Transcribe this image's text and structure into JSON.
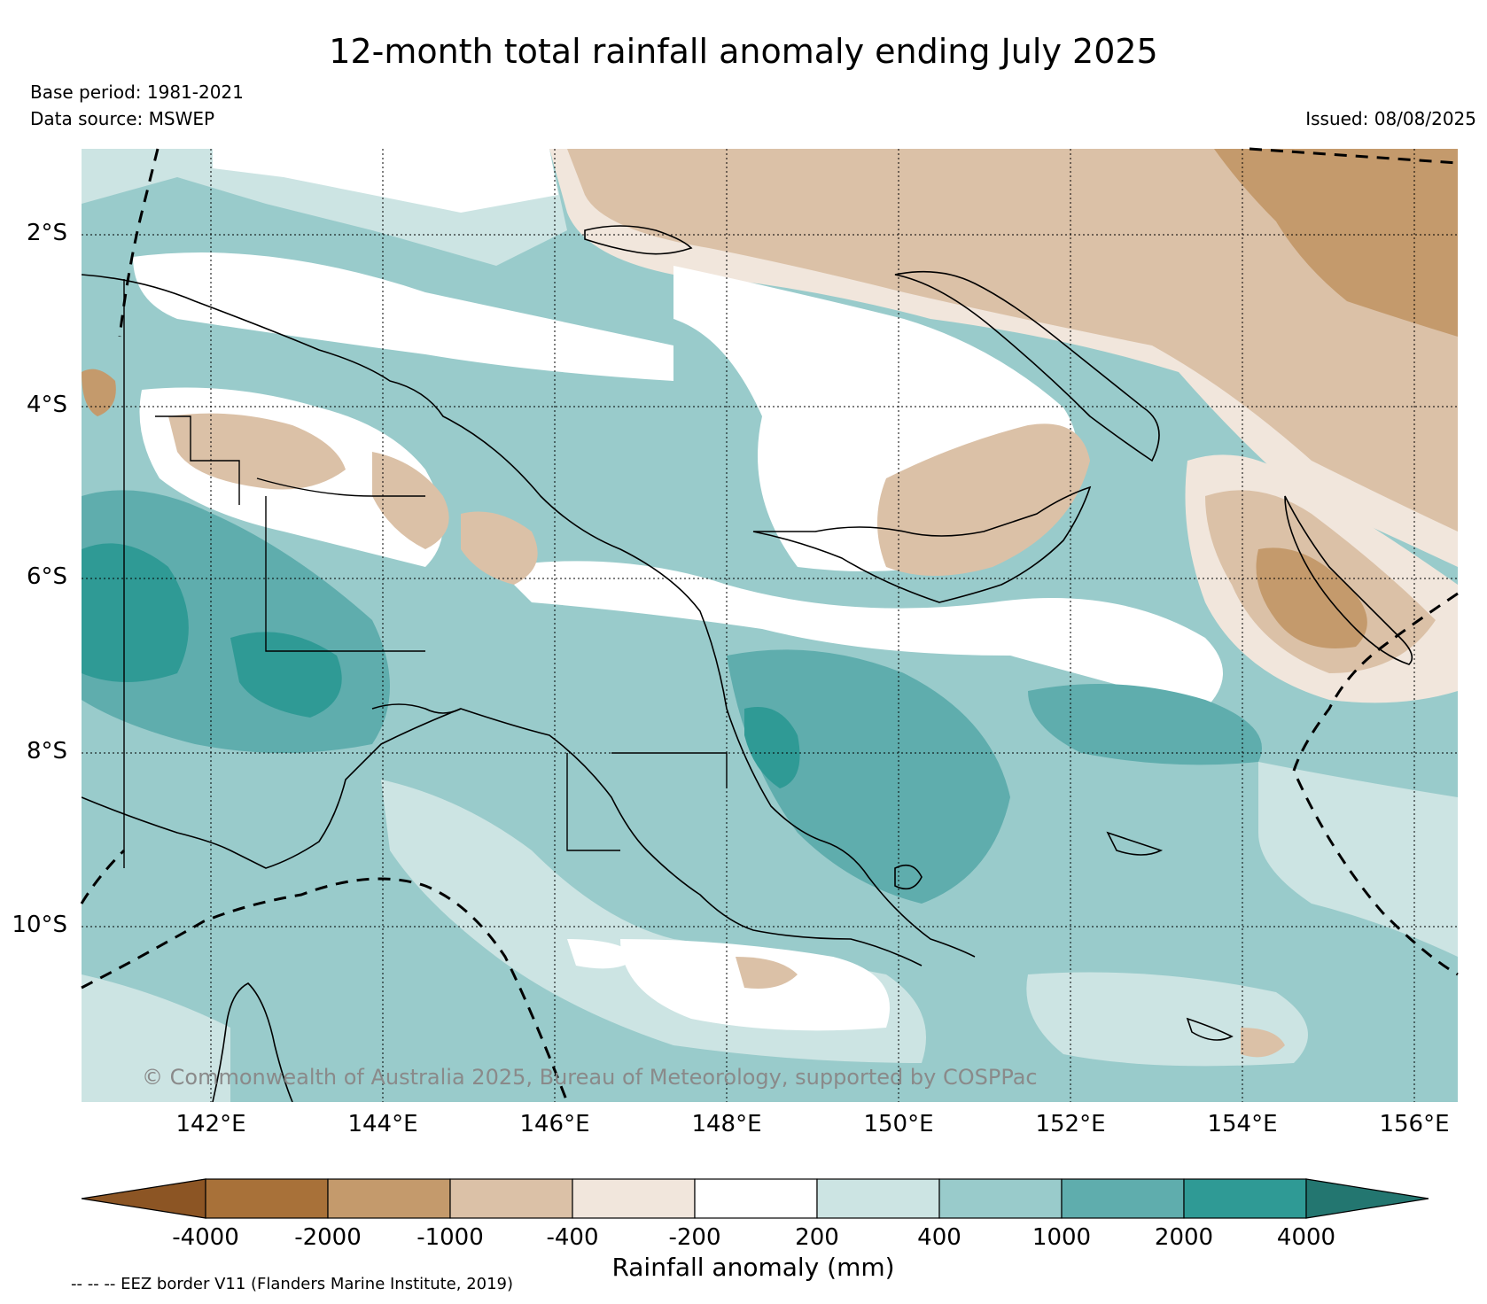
{
  "header": {
    "title": "12-month total rainfall anomaly ending July 2025",
    "base_period": "Base period: 1981-2021",
    "data_source": "Data source: MSWEP",
    "issued": "Issued: 08/08/2025"
  },
  "map": {
    "lat_labels": [
      "2°S",
      "4°S",
      "6°S",
      "8°S",
      "10°S"
    ],
    "lon_labels": [
      "142°E",
      "144°E",
      "146°E",
      "148°E",
      "150°E",
      "152°E",
      "154°E",
      "156°E"
    ],
    "credit": "© Commonwealth of Australia 2025, Bureau of Meteorology, supported by COSPPac",
    "extent": {
      "lon_min": 140.5,
      "lon_max": 156.5,
      "lat_min": -11.9,
      "lat_max": -1.0
    }
  },
  "colorbar": {
    "title": "Rainfall anomaly (mm)",
    "tick_labels": [
      "-4000",
      "-2000",
      "-1000",
      "-400",
      "-200",
      "200",
      "400",
      "1000",
      "2000",
      "4000"
    ],
    "colors": [
      "#8c5524",
      "#a87139",
      "#c49a6c",
      "#dbc1a7",
      "#f1e6dc",
      "#ffffff",
      "#cce4e3",
      "#99cbcb",
      "#5fadad",
      "#2f9a95",
      "#237670"
    ]
  },
  "footer": {
    "eez_note": "-- -- -- EEZ border V11 (Flanders Marine Institute, 2019)"
  }
}
